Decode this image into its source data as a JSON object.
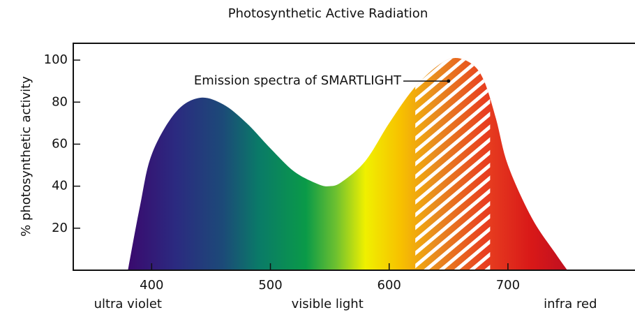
{
  "chart_data": {
    "type": "area",
    "title": "Photosynthetic Active Radiation",
    "ylabel": "% photosynthetic activity",
    "x": [
      380,
      390,
      400,
      420,
      440,
      460,
      480,
      500,
      520,
      540,
      550,
      560,
      580,
      600,
      620,
      640,
      655,
      670,
      680,
      690,
      700,
      720,
      740,
      750
    ],
    "values": [
      0,
      30,
      55,
      75,
      82,
      79,
      70,
      58,
      47,
      41,
      40,
      42,
      52,
      70,
      86,
      97,
      101,
      98,
      90,
      72,
      50,
      25,
      8,
      0
    ],
    "fill_gradient": [
      {
        "x": 380,
        "color": "#3a0a6e"
      },
      {
        "x": 420,
        "color": "#2b2a80"
      },
      {
        "x": 460,
        "color": "#1c4a78"
      },
      {
        "x": 490,
        "color": "#0a7a68"
      },
      {
        "x": 530,
        "color": "#0a9a48"
      },
      {
        "x": 555,
        "color": "#6cc030"
      },
      {
        "x": 580,
        "color": "#f0f000"
      },
      {
        "x": 610,
        "color": "#f7c000"
      },
      {
        "x": 640,
        "color": "#e88a20"
      },
      {
        "x": 680,
        "color": "#e84020"
      },
      {
        "x": 720,
        "color": "#d81818"
      },
      {
        "x": 750,
        "color": "#c01020"
      }
    ],
    "highlight": {
      "label": "Emission spectra of SMARTLIGHT",
      "xrange": [
        622,
        685
      ],
      "point": [
        650,
        90
      ]
    },
    "region_labels": [
      {
        "x": 380,
        "text": "ultra violet"
      },
      {
        "x": 548,
        "text": "visible light"
      },
      {
        "x": 775,
        "text": "infra red"
      }
    ],
    "xlim": [
      334,
      807
    ],
    "ylim": [
      0,
      108
    ],
    "xticks": [
      400,
      500,
      600,
      700
    ],
    "yticks": [
      20,
      40,
      60,
      80,
      100
    ]
  }
}
